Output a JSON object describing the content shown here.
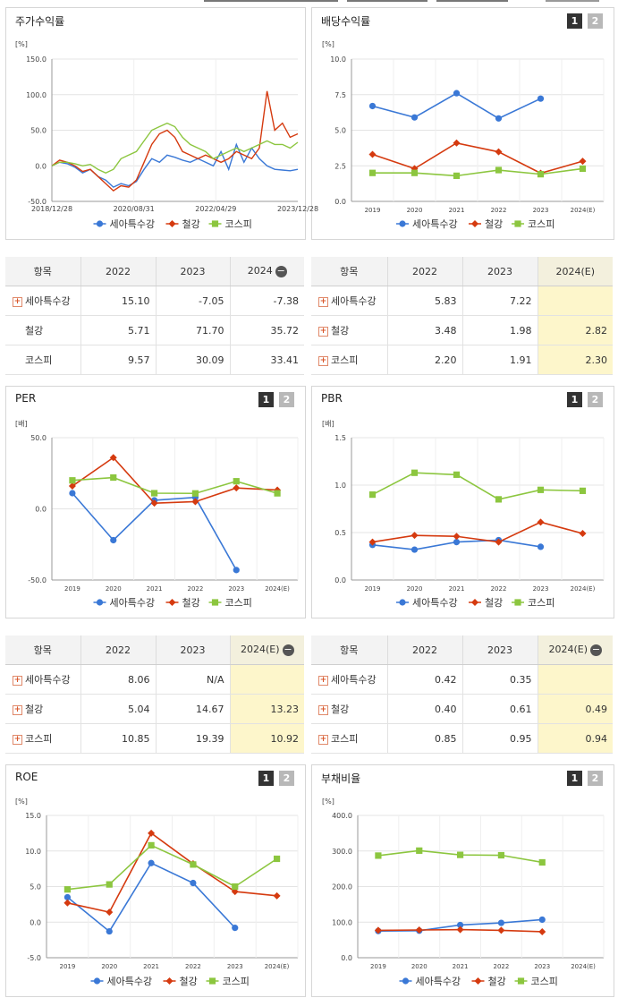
{
  "colors": {
    "company": "#3a78d6",
    "industry": "#d53a0f",
    "market": "#8cc63f"
  },
  "panels": {
    "price": {
      "title": "주가수익률",
      "unit": "[%]"
    },
    "dividend": {
      "title": "배당수익률",
      "unit": "[%]",
      "page1": "1",
      "page2": "2"
    },
    "per": {
      "title": "PER",
      "unit": "[배]",
      "page1": "1",
      "page2": "2"
    },
    "pbr": {
      "title": "PBR",
      "unit": "[배]",
      "page1": "1",
      "page2": "2"
    },
    "roe": {
      "title": "ROE",
      "unit": "[%]",
      "page1": "1",
      "page2": "2"
    },
    "debt": {
      "title": "부채비율",
      "unit": "[%]",
      "page1": "1",
      "page2": "2"
    }
  },
  "tables": {
    "price": {
      "header": [
        "항목",
        "2022",
        "2023",
        "2024"
      ],
      "rows": [
        {
          "name": "세아특수강",
          "plus": true,
          "values": [
            "15.10",
            "-7.05",
            "-7.38"
          ]
        },
        {
          "name": "철강",
          "plus": false,
          "values": [
            "5.71",
            "71.70",
            "35.72"
          ]
        },
        {
          "name": "코스피",
          "plus": false,
          "values": [
            "9.57",
            "30.09",
            "33.41"
          ]
        }
      ]
    },
    "dividend": {
      "header": [
        "항목",
        "2022",
        "2023",
        "2024(E)"
      ],
      "rows": [
        {
          "name": "세아특수강",
          "plus": true,
          "values": [
            "5.83",
            "7.22",
            ""
          ]
        },
        {
          "name": "철강",
          "plus": true,
          "values": [
            "3.48",
            "1.98",
            "2.82"
          ]
        },
        {
          "name": "코스피",
          "plus": true,
          "values": [
            "2.20",
            "1.91",
            "2.30"
          ]
        }
      ]
    },
    "per": {
      "header": [
        "항목",
        "2022",
        "2023",
        "2024(E)"
      ],
      "rows": [
        {
          "name": "세아특수강",
          "plus": true,
          "values": [
            "8.06",
            "N/A",
            ""
          ]
        },
        {
          "name": "철강",
          "plus": true,
          "values": [
            "5.04",
            "14.67",
            "13.23"
          ]
        },
        {
          "name": "코스피",
          "plus": true,
          "values": [
            "10.85",
            "19.39",
            "10.92"
          ]
        }
      ]
    },
    "pbr": {
      "header": [
        "항목",
        "2022",
        "2023",
        "2024(E)"
      ],
      "rows": [
        {
          "name": "세아특수강",
          "plus": true,
          "values": [
            "0.42",
            "0.35",
            ""
          ]
        },
        {
          "name": "철강",
          "plus": true,
          "values": [
            "0.40",
            "0.61",
            "0.49"
          ]
        },
        {
          "name": "코스피",
          "plus": true,
          "values": [
            "0.85",
            "0.95",
            "0.94"
          ]
        }
      ]
    }
  },
  "chart_data": [
    {
      "id": "price",
      "type": "line",
      "title": "주가수익률",
      "ylabel": "[%]",
      "ylim": [
        -50,
        150
      ],
      "yticks": [
        "150.0",
        "100.0",
        "50.0",
        "0.0",
        "-50.0"
      ],
      "xticks": [
        "2018/12/28",
        "2020/08/31",
        "2022/04/29",
        "2023/12/28"
      ],
      "series": [
        {
          "name": "세아특수강",
          "values": [
            0,
            5,
            3,
            -2,
            -10,
            -5,
            -15,
            -20,
            -30,
            -25,
            -28,
            -22,
            -5,
            10,
            5,
            15,
            12,
            8,
            5,
            10,
            5,
            0,
            20,
            -5,
            30,
            5,
            25,
            10,
            0,
            -5,
            -6,
            -7,
            -5
          ]
        },
        {
          "name": "철강",
          "values": [
            0,
            8,
            5,
            0,
            -8,
            -5,
            -15,
            -25,
            -35,
            -28,
            -30,
            -20,
            5,
            30,
            45,
            50,
            40,
            20,
            15,
            10,
            15,
            10,
            5,
            10,
            20,
            15,
            10,
            25,
            105,
            50,
            60,
            40,
            45
          ]
        },
        {
          "name": "코스피",
          "values": [
            0,
            5,
            5,
            3,
            0,
            2,
            -5,
            -10,
            -5,
            10,
            15,
            20,
            35,
            50,
            55,
            60,
            55,
            40,
            30,
            25,
            20,
            10,
            15,
            20,
            25,
            20,
            25,
            30,
            35,
            30,
            30,
            25,
            33
          ]
        }
      ],
      "legend": [
        "세아특수강",
        "철강",
        "코스피"
      ]
    },
    {
      "id": "dividend",
      "type": "line",
      "title": "배당수익률",
      "ylabel": "[%]",
      "ylim": [
        0,
        10
      ],
      "yticks": [
        "10.0",
        "7.5",
        "5.0",
        "2.5",
        "0.0"
      ],
      "categories": [
        "2019",
        "2020",
        "2021",
        "2022",
        "2023",
        "2024(E)"
      ],
      "series": [
        {
          "name": "세아특수강",
          "values": [
            6.7,
            5.9,
            7.6,
            5.83,
            7.22,
            null
          ]
        },
        {
          "name": "철강",
          "values": [
            3.3,
            2.3,
            4.1,
            3.48,
            1.98,
            2.82
          ]
        },
        {
          "name": "코스피",
          "values": [
            2.0,
            2.0,
            1.8,
            2.2,
            1.91,
            2.3
          ]
        }
      ]
    },
    {
      "id": "per",
      "type": "line",
      "title": "PER",
      "ylabel": "[배]",
      "ylim": [
        -50,
        50
      ],
      "yticks": [
        "50.0",
        "0.0",
        "-50.0"
      ],
      "categories": [
        "2019",
        "2020",
        "2021",
        "2022",
        "2023",
        "2024(E)"
      ],
      "series": [
        {
          "name": "세아특수강",
          "values": [
            11,
            -22,
            6,
            8.06,
            -43,
            null
          ]
        },
        {
          "name": "철강",
          "values": [
            16,
            36,
            4,
            5.04,
            14.67,
            13.23
          ]
        },
        {
          "name": "코스피",
          "values": [
            20,
            22,
            11,
            10.85,
            19.39,
            10.92
          ]
        }
      ]
    },
    {
      "id": "pbr",
      "type": "line",
      "title": "PBR",
      "ylabel": "[배]",
      "ylim": [
        0,
        1.5
      ],
      "yticks": [
        "1.5",
        "1.0",
        "0.5",
        "0.0"
      ],
      "categories": [
        "2019",
        "2020",
        "2021",
        "2022",
        "2023",
        "2024(E)"
      ],
      "series": [
        {
          "name": "세아특수강",
          "values": [
            0.37,
            0.32,
            0.4,
            0.42,
            0.35,
            null
          ]
        },
        {
          "name": "철강",
          "values": [
            0.4,
            0.47,
            0.46,
            0.4,
            0.61,
            0.49
          ]
        },
        {
          "name": "코스피",
          "values": [
            0.9,
            1.13,
            1.11,
            0.85,
            0.95,
            0.94
          ]
        }
      ]
    },
    {
      "id": "roe",
      "type": "line",
      "title": "ROE",
      "ylabel": "[%]",
      "ylim": [
        -5,
        15
      ],
      "yticks": [
        "15.0",
        "10.0",
        "5.0",
        "0.0",
        "-5.0"
      ],
      "categories": [
        "2019",
        "2020",
        "2021",
        "2022",
        "2023",
        "2024(E)"
      ],
      "series": [
        {
          "name": "세아특수강",
          "values": [
            3.5,
            -1.3,
            8.3,
            5.5,
            -0.8,
            null
          ]
        },
        {
          "name": "철강",
          "values": [
            2.7,
            1.4,
            12.5,
            8.2,
            4.3,
            3.7
          ]
        },
        {
          "name": "코스피",
          "values": [
            4.6,
            5.3,
            10.8,
            8.1,
            5.0,
            8.9
          ]
        }
      ]
    },
    {
      "id": "debt",
      "type": "line",
      "title": "부채비율",
      "ylabel": "[%]",
      "ylim": [
        0,
        400
      ],
      "yticks": [
        "400.0",
        "300.0",
        "200.0",
        "100.0",
        "0.0"
      ],
      "categories": [
        "2019",
        "2020",
        "2021",
        "2022",
        "2023",
        "2024(E)"
      ],
      "series": [
        {
          "name": "세아특수강",
          "values": [
            75,
            76,
            92,
            98,
            107,
            null
          ]
        },
        {
          "name": "철강",
          "values": [
            77,
            78,
            79,
            77,
            73,
            null
          ]
        },
        {
          "name": "코스피",
          "values": [
            287,
            301,
            289,
            288,
            268,
            null
          ]
        }
      ]
    }
  ]
}
